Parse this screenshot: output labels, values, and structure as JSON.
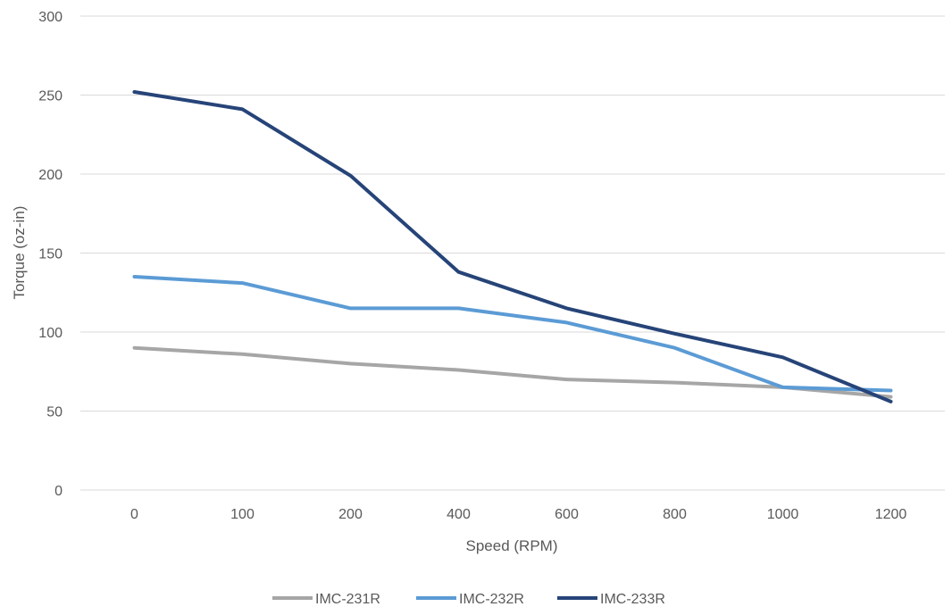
{
  "chart_data": {
    "type": "line",
    "categories": [
      "0",
      "100",
      "200",
      "400",
      "600",
      "800",
      "1000",
      "1200"
    ],
    "series": [
      {
        "name": "IMC-231R",
        "color": "#a6a6a6",
        "values": [
          90,
          86,
          80,
          76,
          70,
          68,
          65,
          59
        ]
      },
      {
        "name": "IMC-232R",
        "color": "#5b9bd5",
        "values": [
          135,
          131,
          115,
          115,
          106,
          90,
          65,
          63
        ]
      },
      {
        "name": "IMC-233R",
        "color": "#264478",
        "values": [
          252,
          241,
          199,
          138,
          115,
          99,
          84,
          56
        ]
      }
    ],
    "xlabel": "Speed (RPM)",
    "ylabel": "Torque (oz-in)",
    "ylim": [
      0,
      300
    ],
    "yticks": [
      0,
      50,
      100,
      150,
      200,
      250,
      300
    ],
    "grid": true,
    "legend_position": "bottom"
  }
}
